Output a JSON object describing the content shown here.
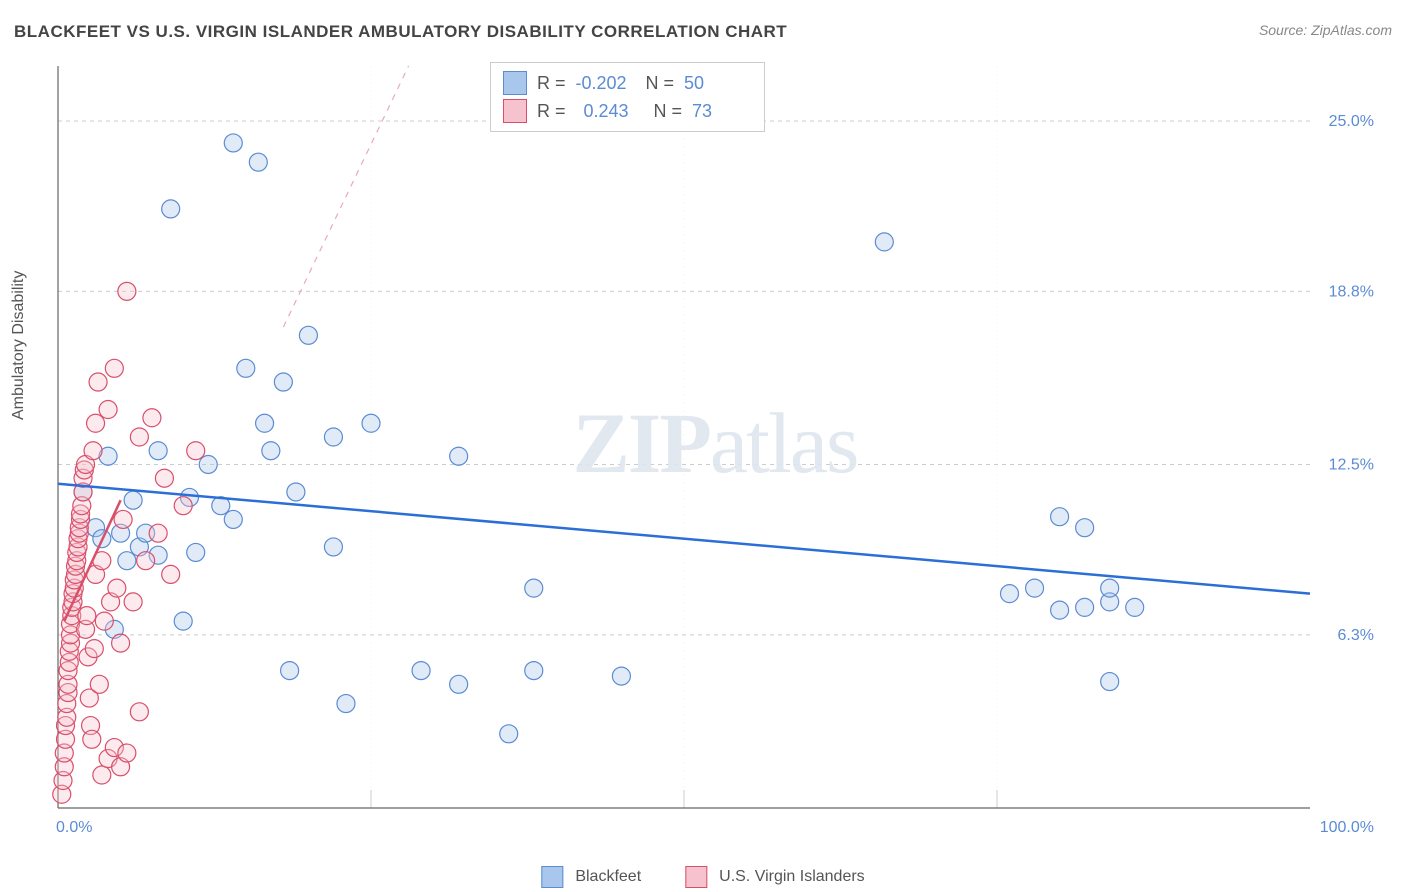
{
  "title": "BLACKFEET VS U.S. VIRGIN ISLANDER AMBULATORY DISABILITY CORRELATION CHART",
  "source": "Source: ZipAtlas.com",
  "ylabel": "Ambulatory Disability",
  "watermark_a": "ZIP",
  "watermark_b": "atlas",
  "chart": {
    "type": "scatter",
    "background_color": "#ffffff",
    "grid_color": "#cccccc",
    "axis_color": "#666666",
    "tick_label_color": "#5b8bd4",
    "xlim": [
      0,
      100
    ],
    "ylim": [
      0,
      27
    ],
    "x_ticks": [
      0,
      100
    ],
    "x_tick_labels": [
      "0.0%",
      "100.0%"
    ],
    "x_minor_gridlines": [
      25,
      50,
      75
    ],
    "y_ticks": [
      6.3,
      12.5,
      18.8,
      25.0
    ],
    "y_tick_labels": [
      "6.3%",
      "12.5%",
      "18.8%",
      "25.0%"
    ],
    "marker_radius": 9,
    "marker_stroke_width": 1.2,
    "marker_fill_opacity": 0.35,
    "series": [
      {
        "name": "Blackfeet",
        "fill": "#a9c7ec",
        "stroke": "#5b8bd4",
        "trend": {
          "x1": 0,
          "y1": 11.8,
          "x2": 100,
          "y2": 7.8,
          "stroke": "#2b6fd6",
          "width": 2.5,
          "dash": "none"
        },
        "trend_extrap": {
          "x1": 18,
          "y1": 17.5,
          "x2": 28,
          "y2": 27.0,
          "stroke": "#e8aab7",
          "width": 1.2,
          "dash": "6 6"
        },
        "r_label": "R =",
        "r_value": "-0.202",
        "n_label": "N =",
        "n_value": "50",
        "points": [
          [
            2,
            11.5
          ],
          [
            3,
            10.2
          ],
          [
            3.5,
            9.8
          ],
          [
            4,
            12.8
          ],
          [
            4.5,
            6.5
          ],
          [
            5,
            10.0
          ],
          [
            5.5,
            9.0
          ],
          [
            6,
            11.2
          ],
          [
            6.5,
            9.5
          ],
          [
            7,
            10.0
          ],
          [
            8,
            9.2
          ],
          [
            8,
            13.0
          ],
          [
            9,
            21.8
          ],
          [
            10,
            6.8
          ],
          [
            10.5,
            11.3
          ],
          [
            11,
            9.3
          ],
          [
            12,
            12.5
          ],
          [
            13,
            11.0
          ],
          [
            14,
            10.5
          ],
          [
            14,
            24.2
          ],
          [
            15,
            16.0
          ],
          [
            16,
            23.5
          ],
          [
            16.5,
            14.0
          ],
          [
            17,
            13.0
          ],
          [
            18,
            15.5
          ],
          [
            18.5,
            5.0
          ],
          [
            19,
            11.5
          ],
          [
            20,
            17.2
          ],
          [
            22,
            9.5
          ],
          [
            22,
            13.5
          ],
          [
            23,
            3.8
          ],
          [
            25,
            14.0
          ],
          [
            29,
            5.0
          ],
          [
            32,
            12.8
          ],
          [
            32,
            4.5
          ],
          [
            36,
            2.7
          ],
          [
            38,
            5.0
          ],
          [
            38,
            8.0
          ],
          [
            45,
            4.8
          ],
          [
            66,
            20.6
          ],
          [
            76,
            7.8
          ],
          [
            78,
            8.0
          ],
          [
            80,
            10.6
          ],
          [
            80,
            7.2
          ],
          [
            82,
            7.3
          ],
          [
            82,
            10.2
          ],
          [
            84,
            4.6
          ],
          [
            84,
            7.5
          ],
          [
            84,
            8.0
          ],
          [
            86,
            7.3
          ]
        ]
      },
      {
        "name": "U.S. Virgin Islanders",
        "fill": "#f5c2cd",
        "stroke": "#d94f6a",
        "trend": {
          "x1": 0.5,
          "y1": 6.8,
          "x2": 5.0,
          "y2": 11.2,
          "stroke": "#d94f6a",
          "width": 2.5,
          "dash": "none"
        },
        "r_label": "R =",
        "r_value": "0.243",
        "n_label": "N =",
        "n_value": "73",
        "points": [
          [
            0.3,
            0.5
          ],
          [
            0.4,
            1.0
          ],
          [
            0.5,
            1.5
          ],
          [
            0.5,
            2.0
          ],
          [
            0.6,
            2.5
          ],
          [
            0.6,
            3.0
          ],
          [
            0.7,
            3.3
          ],
          [
            0.7,
            3.8
          ],
          [
            0.8,
            4.2
          ],
          [
            0.8,
            4.5
          ],
          [
            0.8,
            5.0
          ],
          [
            0.9,
            5.3
          ],
          [
            0.9,
            5.7
          ],
          [
            1.0,
            6.0
          ],
          [
            1.0,
            6.3
          ],
          [
            1.0,
            6.7
          ],
          [
            1.1,
            7.0
          ],
          [
            1.1,
            7.3
          ],
          [
            1.2,
            7.5
          ],
          [
            1.2,
            7.8
          ],
          [
            1.3,
            8.0
          ],
          [
            1.3,
            8.3
          ],
          [
            1.4,
            8.5
          ],
          [
            1.4,
            8.8
          ],
          [
            1.5,
            9.0
          ],
          [
            1.5,
            9.3
          ],
          [
            1.6,
            9.5
          ],
          [
            1.6,
            9.8
          ],
          [
            1.7,
            10.0
          ],
          [
            1.7,
            10.2
          ],
          [
            1.8,
            10.5
          ],
          [
            1.8,
            10.7
          ],
          [
            1.9,
            11.0
          ],
          [
            2.0,
            11.5
          ],
          [
            2.0,
            12.0
          ],
          [
            2.1,
            12.3
          ],
          [
            2.2,
            12.5
          ],
          [
            2.2,
            6.5
          ],
          [
            2.3,
            7.0
          ],
          [
            2.4,
            5.5
          ],
          [
            2.5,
            4.0
          ],
          [
            2.6,
            3.0
          ],
          [
            2.7,
            2.5
          ],
          [
            2.8,
            13.0
          ],
          [
            2.9,
            5.8
          ],
          [
            3.0,
            8.5
          ],
          [
            3.0,
            14.0
          ],
          [
            3.2,
            15.5
          ],
          [
            3.3,
            4.5
          ],
          [
            3.5,
            9.0
          ],
          [
            3.5,
            1.2
          ],
          [
            3.7,
            6.8
          ],
          [
            4.0,
            14.5
          ],
          [
            4.0,
            1.8
          ],
          [
            4.2,
            7.5
          ],
          [
            4.5,
            16.0
          ],
          [
            4.5,
            2.2
          ],
          [
            4.7,
            8.0
          ],
          [
            5.0,
            1.5
          ],
          [
            5.0,
            6.0
          ],
          [
            5.2,
            10.5
          ],
          [
            5.5,
            2.0
          ],
          [
            5.5,
            18.8
          ],
          [
            6.0,
            7.5
          ],
          [
            6.5,
            13.5
          ],
          [
            6.5,
            3.5
          ],
          [
            7.0,
            9.0
          ],
          [
            7.5,
            14.2
          ],
          [
            8.0,
            10.0
          ],
          [
            8.5,
            12.0
          ],
          [
            9.0,
            8.5
          ],
          [
            10.0,
            11.0
          ],
          [
            11.0,
            13.0
          ]
        ]
      }
    ]
  },
  "legend_bottom": {
    "items": [
      {
        "label": "Blackfeet",
        "fill": "#a9c7ec",
        "stroke": "#5b8bd4"
      },
      {
        "label": "U.S. Virgin Islanders",
        "fill": "#f5c2cd",
        "stroke": "#d94f6a"
      }
    ]
  }
}
